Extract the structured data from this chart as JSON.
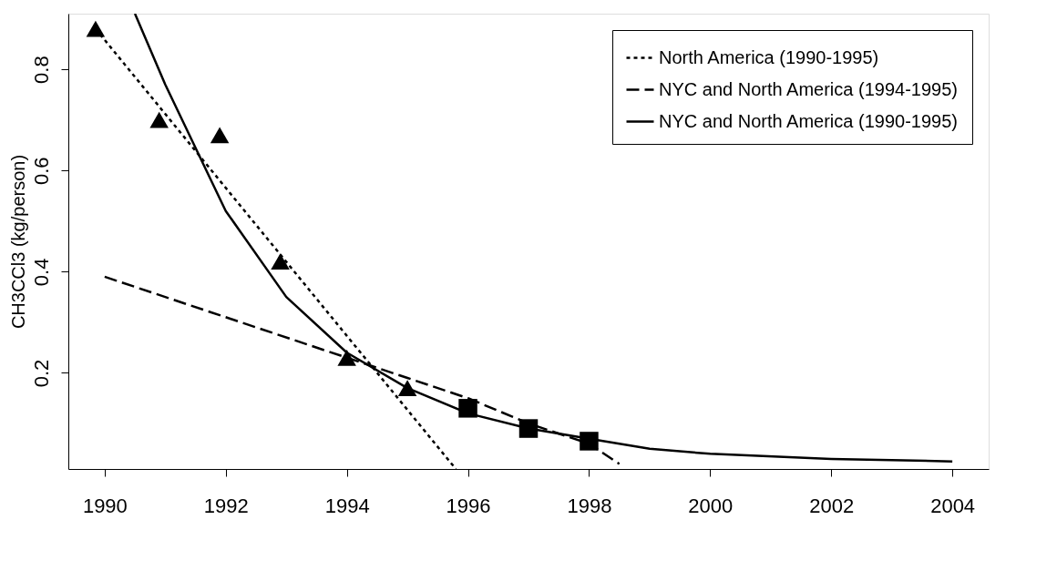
{
  "chart_data": {
    "type": "line",
    "ylabel": "CH3CCl3 (kg/person)",
    "xlim": [
      1989.4,
      2004.6
    ],
    "ylim": [
      0.01,
      0.91
    ],
    "xticks": [
      1990,
      1992,
      1994,
      1996,
      1998,
      2000,
      2002,
      2004
    ],
    "yticks": [
      0.2,
      0.4,
      0.6,
      0.8
    ],
    "grid": false,
    "legend": "top right",
    "series": [
      {
        "name": "North America (1990-1995)",
        "line_style": "dotted",
        "color": "#000000",
        "x": [
          1989.85,
          1995.8
        ],
        "values": [
          0.88,
          0.01
        ]
      },
      {
        "name": "NYC and North America (1994-1995)",
        "line_style": "dashed",
        "color": "#000000",
        "x": [
          1990,
          1994,
          1995,
          1996,
          1997,
          1998,
          1998.5
        ],
        "values": [
          0.39,
          0.23,
          0.19,
          0.15,
          0.1,
          0.06,
          0.02
        ]
      },
      {
        "name": "NYC and North America (1990-1995)",
        "line_style": "solid",
        "color": "#000000",
        "x": [
          1990.5,
          1991,
          1992,
          1993,
          1994,
          1995,
          1996,
          1997,
          1998,
          1999,
          2000,
          2002,
          2004
        ],
        "values": [
          0.91,
          0.77,
          0.52,
          0.35,
          0.24,
          0.17,
          0.12,
          0.09,
          0.07,
          0.05,
          0.04,
          0.03,
          0.025
        ]
      },
      {
        "type": "scatter",
        "marker": "triangle",
        "color": "#000000",
        "x": [
          1989.85,
          1990.9,
          1991.9,
          1992.9,
          1994,
          1995
        ],
        "values": [
          0.88,
          0.7,
          0.67,
          0.42,
          0.23,
          0.17
        ]
      },
      {
        "type": "scatter",
        "marker": "square",
        "color": "#000000",
        "x": [
          1996,
          1997,
          1998
        ],
        "values": [
          0.13,
          0.09,
          0.065
        ]
      }
    ]
  }
}
